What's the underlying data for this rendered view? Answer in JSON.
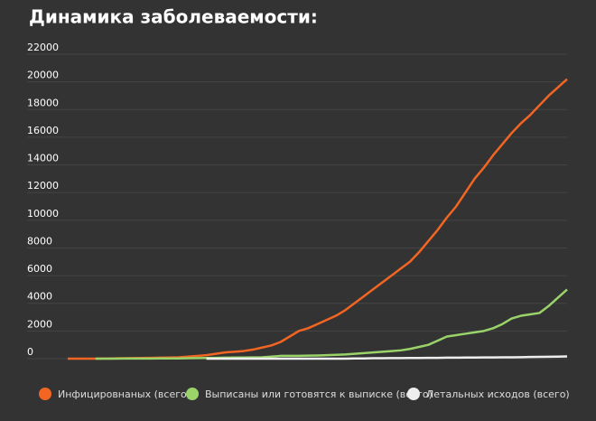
{
  "chart_data": {
    "type": "line",
    "title": "Динамика заболеваемости:",
    "categories": [
      null,
      null,
      null,
      null,
      null,
      null,
      null,
      null,
      null,
      null,
      null,
      null,
      null,
      null,
      null,
      null,
      null,
      null,
      null,
      null,
      null,
      null,
      null,
      null,
      null,
      null,
      null,
      null,
      null,
      null,
      null,
      null,
      null,
      null,
      null,
      null,
      null,
      null,
      null,
      null,
      null,
      null,
      null,
      null,
      null,
      null,
      null,
      null,
      null,
      null,
      null,
      null,
      null,
      null,
      null
    ],
    "series": [
      {
        "name": "Инфицировнаных (всего)",
        "color": "#f26522",
        "values": [
          0,
          0,
          0,
          0,
          10,
          20,
          30,
          40,
          50,
          60,
          70,
          80,
          100,
          150,
          200,
          250,
          350,
          450,
          500,
          550,
          650,
          800,
          950,
          1200,
          1600,
          2000,
          2200,
          2500,
          2800,
          3100,
          3500,
          4000,
          4500,
          5000,
          5500,
          6000,
          6500,
          7000,
          7700,
          8500,
          9300,
          10200,
          11000,
          12000,
          13000,
          13800,
          14700,
          15500,
          16300,
          17000,
          17600,
          18300,
          19000,
          19600,
          20200
        ]
      },
      {
        "name": "Выписаны или готовятся к выписке (всего)",
        "color": "#9ad36a",
        "values": [
          null,
          null,
          null,
          0,
          0,
          0,
          10,
          10,
          10,
          10,
          20,
          20,
          20,
          30,
          40,
          50,
          60,
          70,
          80,
          80,
          90,
          100,
          150,
          200,
          200,
          200,
          220,
          230,
          250,
          280,
          300,
          350,
          400,
          450,
          500,
          550,
          600,
          700,
          850,
          1000,
          1300,
          1600,
          1700,
          1800,
          1900,
          2000,
          2200,
          2500,
          2900,
          3100,
          3200,
          3300,
          3800,
          4400,
          5000
        ]
      },
      {
        "name": "Летальных исходов (всего)",
        "color": "#eeeeee",
        "values": [
          null,
          null,
          null,
          null,
          null,
          null,
          null,
          null,
          null,
          null,
          null,
          null,
          null,
          null,
          null,
          0,
          0,
          0,
          0,
          0,
          0,
          0,
          0,
          0,
          0,
          0,
          0,
          0,
          0,
          0,
          0,
          20,
          20,
          30,
          30,
          40,
          40,
          50,
          50,
          60,
          60,
          70,
          70,
          80,
          80,
          90,
          90,
          100,
          100,
          110,
          120,
          130,
          140,
          150,
          160
        ]
      }
    ],
    "ylim": [
      0,
      22000
    ],
    "yticks": [
      0,
      2000,
      4000,
      6000,
      8000,
      10000,
      12000,
      14000,
      16000,
      18000,
      20000,
      22000
    ],
    "grid": true,
    "legend": "bottom"
  }
}
